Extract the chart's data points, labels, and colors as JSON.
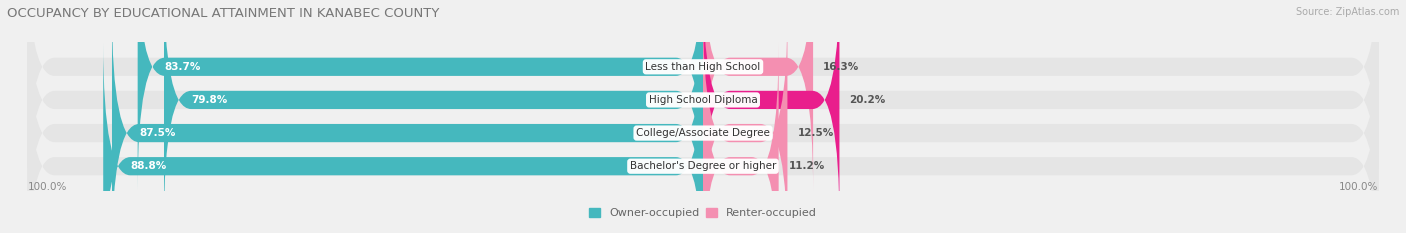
{
  "title": "OCCUPANCY BY EDUCATIONAL ATTAINMENT IN KANABEC COUNTY",
  "source": "Source: ZipAtlas.com",
  "categories": [
    "Less than High School",
    "High School Diploma",
    "College/Associate Degree",
    "Bachelor's Degree or higher"
  ],
  "owner_values": [
    83.7,
    79.8,
    87.5,
    88.8
  ],
  "renter_values": [
    16.3,
    20.2,
    12.5,
    11.2
  ],
  "owner_color": "#45b8be",
  "renter_color": "#f48fb1",
  "renter_color_row1": "#f48fb1",
  "renter_color_row2": "#e91e8c",
  "bar_bg_color": "#e5e5e5",
  "bar_shadow_color": "#d0d0d0",
  "owner_label": "Owner-occupied",
  "renter_label": "Renter-occupied",
  "left_label": "100.0%",
  "right_label": "100.0%",
  "title_fontsize": 9.5,
  "source_fontsize": 7.0,
  "bar_label_fontsize": 7.5,
  "legend_fontsize": 8,
  "axis_label_fontsize": 7.5,
  "bg_color": "#f0f0f0",
  "bar_height": 0.55,
  "renter_colors": [
    "#f48fb1",
    "#e91e8c",
    "#f48fb1",
    "#f48fb1"
  ]
}
